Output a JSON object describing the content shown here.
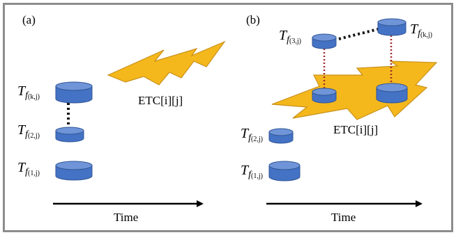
{
  "panels": [
    {
      "label": "(a)",
      "cloud_label": "ETC[i][j]",
      "axis_label": "Time",
      "tasks": [
        {
          "main": "T",
          "sub": "f",
          "subsub": "(k,j)"
        },
        {
          "main": "T",
          "sub": "f",
          "subsub": "(2,j)"
        },
        {
          "main": "T",
          "sub": "f",
          "subsub": "(1,j)"
        }
      ]
    },
    {
      "label": "(b)",
      "cloud_label": "ETC[i][j]",
      "axis_label": "Time",
      "tasks": [
        {
          "main": "T",
          "sub": "f",
          "subsub": "(3,j)"
        },
        {
          "main": "T",
          "sub": "f",
          "subsub": "(k,j)"
        },
        {
          "main": "T",
          "sub": "f",
          "subsub": "(2,j)"
        },
        {
          "main": "T",
          "sub": "f",
          "subsub": "(1,j)"
        }
      ]
    }
  ],
  "colors": {
    "cylinder": "#4472c4",
    "cylinder_top": "#6f95d8",
    "lightning": "#f5b81c",
    "lightning_stroke": "#c8901a",
    "link_black": "#111111",
    "link_red": "#a0282a",
    "frame": "#8c8c8c"
  }
}
